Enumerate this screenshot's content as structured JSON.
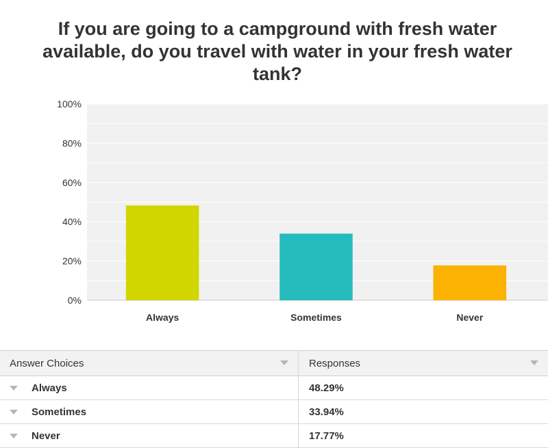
{
  "chart_data": {
    "type": "bar",
    "title": "If you are going to a campground with fresh water available, do you travel with water in your fresh water tank?",
    "categories": [
      "Always",
      "Sometimes",
      "Never"
    ],
    "values": [
      48.29,
      33.94,
      17.77
    ],
    "colors": [
      "#d1d600",
      "#26bcbd",
      "#fbb202"
    ],
    "ylim": [
      0,
      100
    ],
    "yticks": [
      "0%",
      "20%",
      "40%",
      "60%",
      "80%",
      "100%"
    ],
    "grid": true,
    "xlabel": "",
    "ylabel": ""
  },
  "table": {
    "headers": [
      "Answer Choices",
      "Responses"
    ],
    "rows": [
      {
        "choice": "Always",
        "response": "48.29%"
      },
      {
        "choice": "Sometimes",
        "response": "33.94%"
      },
      {
        "choice": "Never",
        "response": "17.77%"
      }
    ]
  },
  "icons": {
    "header_sort": "chevron-down-icon",
    "row_expand": "chevron-down-icon"
  }
}
